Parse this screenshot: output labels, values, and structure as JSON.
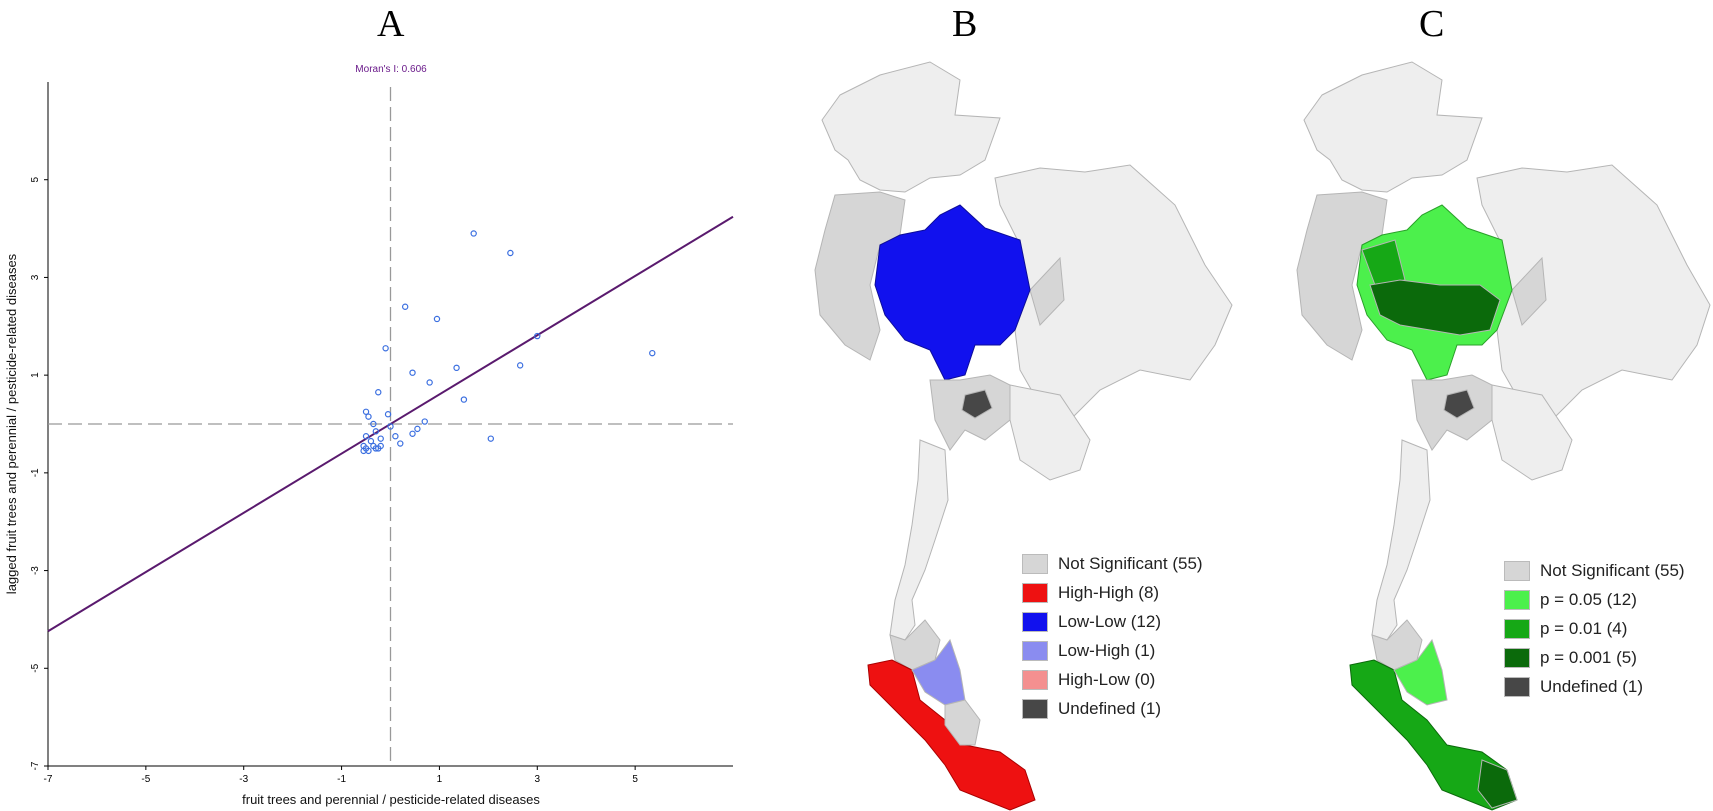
{
  "panels": {
    "a": "A",
    "b": "B",
    "c": "C"
  },
  "chart_data": {
    "type": "scatter",
    "title": "Moran's I: 0.606",
    "xlabel": "fruit trees and perennial / pesticide-related diseases",
    "ylabel": "lagged fruit trees and perennial / pesticide-related diseases",
    "xlim": [
      -7,
      7
    ],
    "ylim": [
      -7,
      7
    ],
    "xticks": [
      -7,
      -5,
      -3,
      -1,
      1,
      3,
      5
    ],
    "yticks": [
      -7,
      -5,
      -3,
      -1,
      1,
      3,
      5
    ],
    "slope": 0.606,
    "grid": false,
    "points": [
      [
        1.7,
        3.9
      ],
      [
        2.45,
        3.5
      ],
      [
        0.3,
        2.4
      ],
      [
        0.95,
        2.15
      ],
      [
        -0.1,
        1.55
      ],
      [
        3.0,
        1.8
      ],
      [
        5.35,
        1.45
      ],
      [
        1.35,
        1.15
      ],
      [
        2.65,
        1.2
      ],
      [
        0.45,
        1.05
      ],
      [
        0.8,
        0.85
      ],
      [
        -0.25,
        0.65
      ],
      [
        1.5,
        0.5
      ],
      [
        -0.5,
        0.25
      ],
      [
        -0.05,
        0.2
      ],
      [
        0.7,
        0.05
      ],
      [
        -0.45,
        0.15
      ],
      [
        -0.35,
        0.0
      ],
      [
        0.55,
        -0.1
      ],
      [
        0.0,
        -0.05
      ],
      [
        -0.3,
        -0.15
      ],
      [
        0.45,
        -0.2
      ],
      [
        -0.5,
        -0.25
      ],
      [
        0.1,
        -0.25
      ],
      [
        -0.2,
        -0.3
      ],
      [
        -0.4,
        -0.35
      ],
      [
        0.2,
        -0.4
      ],
      [
        2.05,
        -0.3
      ],
      [
        -0.55,
        -0.45
      ],
      [
        -0.35,
        -0.45
      ],
      [
        -0.25,
        -0.5
      ],
      [
        -0.5,
        -0.5
      ],
      [
        -0.55,
        -0.55
      ],
      [
        -0.45,
        -0.55
      ],
      [
        -0.3,
        -0.5
      ],
      [
        -0.2,
        -0.45
      ]
    ]
  },
  "legend_b": [
    {
      "label": "Not Significant (55)",
      "color": "#d6d6d6"
    },
    {
      "label": "High-High (8)",
      "color": "#ee1111"
    },
    {
      "label": "Low-Low (12)",
      "color": "#1111ee"
    },
    {
      "label": "Low-High (1)",
      "color": "#8a8cf0"
    },
    {
      "label": "High-Low (0)",
      "color": "#f49090"
    },
    {
      "label": "Undefined (1)",
      "color": "#474747"
    }
  ],
  "legend_c": [
    {
      "label": "Not Significant (55)",
      "color": "#d6d6d6"
    },
    {
      "label": "p = 0.05 (12)",
      "color": "#4cf04c"
    },
    {
      "label": "p = 0.01 (4)",
      "color": "#16a816"
    },
    {
      "label": "p = 0.001 (5)",
      "color": "#0b6a0b"
    },
    {
      "label": "Undefined (1)",
      "color": "#474747"
    }
  ],
  "colors": {
    "line": "#5a1a6e",
    "points": "#3b6fe0",
    "title": "#6a1a8a",
    "country": "#eeeeee",
    "neighbor": "#d6d6d6"
  }
}
